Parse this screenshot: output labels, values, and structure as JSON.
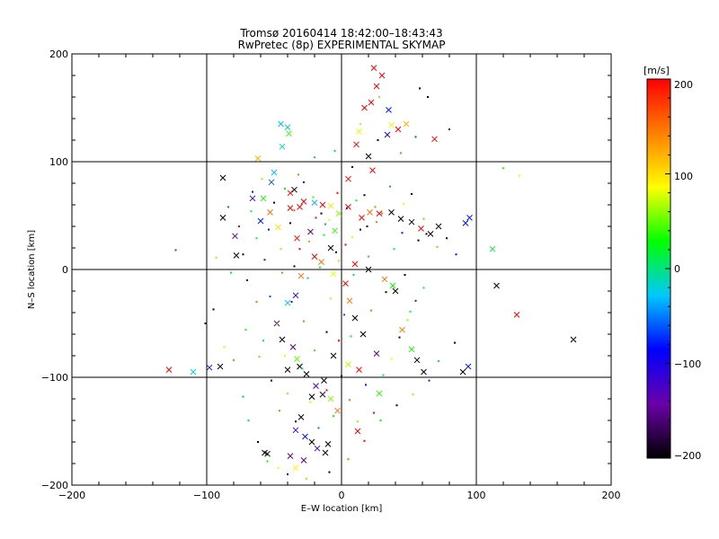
{
  "chart_data": {
    "type": "scatter",
    "title": "Tromsø 20160414 18:42:00–18:43:43",
    "subtitle": "RwPretec (8p) EXPERIMENTAL SKYMAP",
    "xlabel": "E–W location [km]",
    "ylabel": "N–S location [km]",
    "xlim": [
      -200,
      200
    ],
    "ylim": [
      -200,
      200
    ],
    "xticks": [
      "−200",
      "−100",
      "0",
      "100",
      "200"
    ],
    "yticks": [
      "−200",
      "−100",
      "0",
      "100",
      "200"
    ],
    "grid": true,
    "colorbar": {
      "label": "[m/s]",
      "min": -200,
      "max": 200,
      "ticks": [
        "200",
        "100",
        "0",
        "−100",
        "−200"
      ],
      "stops": [
        "#000000",
        "#6a00a8",
        "#0000ff",
        "#00c8ff",
        "#00ff00",
        "#ffff00",
        "#ff8000",
        "#ff0000"
      ]
    },
    "series": [
      {
        "marker": "x",
        "points": [
          [
            -128,
            -93,
            200
          ],
          [
            -110,
            -95,
            -20
          ],
          [
            -98,
            -91,
            -120
          ],
          [
            -90,
            -90,
            -200
          ],
          [
            -88,
            85,
            -200
          ],
          [
            -88,
            48,
            -200
          ],
          [
            -79,
            31,
            -150
          ],
          [
            -78,
            13,
            -200
          ],
          [
            -62,
            103,
            120
          ],
          [
            -58,
            66,
            30
          ],
          [
            -57,
            -170,
            -200
          ],
          [
            -55,
            -171,
            -200
          ],
          [
            -52,
            81,
            -60
          ],
          [
            -50,
            90,
            -30
          ],
          [
            -45,
            135,
            -30
          ],
          [
            -40,
            132,
            -20
          ],
          [
            -39,
            126,
            40
          ],
          [
            -44,
            114,
            -10
          ],
          [
            -35,
            74,
            -200
          ],
          [
            -38,
            71,
            200
          ],
          [
            -38,
            57,
            200
          ],
          [
            -31,
            58,
            200
          ],
          [
            -28,
            63,
            200
          ],
          [
            -20,
            62,
            -30
          ],
          [
            -14,
            60,
            200
          ],
          [
            -8,
            59,
            100
          ],
          [
            -2,
            52,
            60
          ],
          [
            5,
            58,
            200
          ],
          [
            15,
            48,
            200
          ],
          [
            21,
            53,
            150
          ],
          [
            28,
            52,
            200
          ],
          [
            37,
            53,
            -200
          ],
          [
            44,
            47,
            -200
          ],
          [
            52,
            44,
            -200
          ],
          [
            59,
            38,
            200
          ],
          [
            66,
            33,
            -200
          ],
          [
            72,
            40,
            -200
          ],
          [
            92,
            43,
            -80
          ],
          [
            95,
            48,
            -80
          ],
          [
            112,
            19,
            20
          ],
          [
            115,
            -15,
            -200
          ],
          [
            130,
            -42,
            200
          ],
          [
            172,
            -65,
            -200
          ],
          [
            94,
            -90,
            -80
          ],
          [
            90,
            -95,
            -200
          ],
          [
            61,
            -95,
            -200
          ],
          [
            56,
            -84,
            -200
          ],
          [
            52,
            -74,
            30
          ],
          [
            45,
            -56,
            150
          ],
          [
            40,
            -20,
            -200
          ],
          [
            38,
            -15,
            30
          ],
          [
            32,
            -9,
            150
          ],
          [
            20,
            0,
            -200
          ],
          [
            10,
            5,
            200
          ],
          [
            -8,
            20,
            -200
          ],
          [
            -20,
            12,
            200
          ],
          [
            -30,
            -6,
            150
          ],
          [
            -34,
            -24,
            -100
          ],
          [
            -40,
            -31,
            -30
          ],
          [
            -48,
            -50,
            -150
          ],
          [
            -44,
            -65,
            -200
          ],
          [
            -36,
            -72,
            -150
          ],
          [
            -31,
            -90,
            -200
          ],
          [
            -26,
            -97,
            -200
          ],
          [
            -19,
            -108,
            -120
          ],
          [
            -14,
            -116,
            -200
          ],
          [
            -8,
            -120,
            60
          ],
          [
            -3,
            -131,
            150
          ],
          [
            -30,
            -137,
            -200
          ],
          [
            -34,
            -149,
            -120
          ],
          [
            -27,
            -155,
            -80
          ],
          [
            -22,
            -160,
            -200
          ],
          [
            -18,
            -166,
            -120
          ],
          [
            -12,
            -170,
            -200
          ],
          [
            -38,
            -173,
            -150
          ],
          [
            -34,
            -184,
            90
          ],
          [
            -28,
            -177,
            -130
          ],
          [
            -10,
            -162,
            -200
          ],
          [
            -22,
            -118,
            -200
          ],
          [
            -13,
            -103,
            -200
          ],
          [
            -40,
            -93,
            -200
          ],
          [
            -33,
            -83,
            50
          ],
          [
            -6,
            -80,
            -200
          ],
          [
            5,
            -88,
            70
          ],
          [
            13,
            -93,
            200
          ],
          [
            12,
            -150,
            200
          ],
          [
            28,
            -115,
            40
          ],
          [
            26,
            -78,
            -150
          ],
          [
            16,
            -60,
            -200
          ],
          [
            10,
            -45,
            -200
          ],
          [
            6,
            -29,
            150
          ],
          [
            3,
            -13,
            200
          ],
          [
            -6,
            -4,
            80
          ],
          [
            -15,
            7,
            150
          ],
          [
            -5,
            36,
            40
          ],
          [
            -23,
            35,
            -150
          ],
          [
            -33,
            29,
            200
          ],
          [
            -47,
            39,
            100
          ],
          [
            -53,
            53,
            150
          ],
          [
            -60,
            45,
            -80
          ],
          [
            -66,
            66,
            -120
          ],
          [
            11,
            116,
            200
          ],
          [
            13,
            128,
            80
          ],
          [
            17,
            150,
            200
          ],
          [
            22,
            155,
            200
          ],
          [
            26,
            170,
            200
          ],
          [
            30,
            180,
            200
          ],
          [
            24,
            187,
            200
          ],
          [
            34,
            125,
            -100
          ],
          [
            37,
            134,
            90
          ],
          [
            42,
            130,
            200
          ],
          [
            48,
            135,
            120
          ],
          [
            69,
            121,
            200
          ],
          [
            35,
            148,
            -80
          ],
          [
            20,
            105,
            -200
          ],
          [
            23,
            92,
            200
          ],
          [
            5,
            84,
            200
          ]
        ]
      },
      {
        "marker": "dot",
        "points": [
          [
            -123,
            18,
            -60
          ],
          [
            -93,
            11,
            60
          ],
          [
            -82,
            -3,
            20
          ],
          [
            -73,
            14,
            -200
          ],
          [
            -63,
            29,
            20
          ],
          [
            -57,
            9,
            -150
          ],
          [
            -53,
            -25,
            -60
          ],
          [
            -48,
            -51,
            60
          ],
          [
            -44,
            -3,
            150
          ],
          [
            -38,
            43,
            -200
          ],
          [
            -31,
            19,
            200
          ],
          [
            -25,
            -8,
            -30
          ],
          [
            -19,
            48,
            200
          ],
          [
            -13,
            32,
            20
          ],
          [
            -8,
            -27,
            100
          ],
          [
            -2,
            8,
            60
          ],
          [
            3,
            23,
            200
          ],
          [
            9,
            -5,
            -30
          ],
          [
            14,
            37,
            -200
          ],
          [
            20,
            12,
            30
          ],
          [
            26,
            44,
            150
          ],
          [
            33,
            -21,
            -200
          ],
          [
            39,
            19,
            0
          ],
          [
            45,
            34,
            -120
          ],
          [
            51,
            -39,
            20
          ],
          [
            57,
            27,
            -200
          ],
          [
            63,
            33,
            -200
          ],
          [
            71,
            21,
            130
          ],
          [
            78,
            29,
            -200
          ],
          [
            85,
            14,
            -100
          ],
          [
            -71,
            -56,
            30
          ],
          [
            -61,
            -81,
            130
          ],
          [
            -52,
            -103,
            -200
          ],
          [
            -46,
            -131,
            150
          ],
          [
            -40,
            -115,
            60
          ],
          [
            -34,
            -141,
            -200
          ],
          [
            -29,
            -92,
            20
          ],
          [
            -23,
            -123,
            100
          ],
          [
            -17,
            -147,
            -50
          ],
          [
            -11,
            -112,
            200
          ],
          [
            -6,
            -136,
            30
          ],
          [
            0,
            -99,
            -200
          ],
          [
            6,
            -121,
            150
          ],
          [
            12,
            -141,
            60
          ],
          [
            18,
            -107,
            -80
          ],
          [
            24,
            -133,
            200
          ],
          [
            31,
            -98,
            20
          ],
          [
            37,
            -83,
            90
          ],
          [
            43,
            -63,
            -200
          ],
          [
            49,
            -47,
            60
          ],
          [
            55,
            -29,
            -150
          ],
          [
            61,
            -17,
            0
          ],
          [
            -66,
            72,
            -80
          ],
          [
            -59,
            84,
            60
          ],
          [
            -50,
            62,
            -200
          ],
          [
            -42,
            75,
            30
          ],
          [
            -35,
            55,
            150
          ],
          [
            -28,
            81,
            -100
          ],
          [
            -21,
            67,
            40
          ],
          [
            -15,
            52,
            -200
          ],
          [
            -9,
            46,
            80
          ],
          [
            -3,
            71,
            200
          ],
          [
            4,
            57,
            -150
          ],
          [
            11,
            64,
            20
          ],
          [
            17,
            69,
            -200
          ],
          [
            25,
            58,
            150
          ],
          [
            36,
            77,
            -40
          ],
          [
            46,
            61,
            80
          ],
          [
            52,
            70,
            -200
          ],
          [
            61,
            47,
            40
          ],
          [
            -5,
            110,
            20
          ],
          [
            8,
            95,
            -200
          ],
          [
            14,
            135,
            100
          ],
          [
            27,
            120,
            -200
          ],
          [
            44,
            108,
            150
          ],
          [
            55,
            123,
            -60
          ],
          [
            64,
            160,
            -200
          ],
          [
            80,
            130,
            -100
          ],
          [
            132,
            87,
            80
          ],
          [
            120,
            94,
            40
          ],
          [
            58,
            168,
            -200
          ],
          [
            28,
            160,
            60
          ],
          [
            -20,
            104,
            -30
          ],
          [
            -32,
            88,
            150
          ],
          [
            -76,
            40,
            200
          ],
          [
            -84,
            58,
            -50
          ],
          [
            -95,
            -37,
            -200
          ],
          [
            -101,
            -50,
            -200
          ],
          [
            -87,
            -72,
            70
          ],
          [
            -80,
            -84,
            150
          ],
          [
            -73,
            -118,
            -40
          ],
          [
            -69,
            -140,
            20
          ],
          [
            -62,
            -160,
            -200
          ],
          [
            -55,
            -178,
            30
          ],
          [
            -47,
            -184,
            90
          ],
          [
            -40,
            -190,
            -200
          ],
          [
            -26,
            -194,
            60
          ],
          [
            -9,
            -188,
            -200
          ],
          [
            5,
            -176,
            150
          ],
          [
            17,
            -159,
            200
          ],
          [
            29,
            -140,
            30
          ],
          [
            41,
            -126,
            -200
          ],
          [
            53,
            -116,
            60
          ],
          [
            65,
            -103,
            -150
          ],
          [
            72,
            -85,
            20
          ],
          [
            84,
            -68,
            -200
          ],
          [
            47,
            -5,
            -200
          ],
          [
            22,
            -38,
            150
          ],
          [
            -11,
            -58,
            -200
          ],
          [
            -20,
            -75,
            40
          ],
          [
            -2,
            -66,
            200
          ],
          [
            2,
            -42,
            -60
          ],
          [
            7,
            -62,
            20
          ],
          [
            -28,
            -48,
            150
          ],
          [
            -37,
            -30,
            -150
          ],
          [
            -16,
            2,
            20
          ],
          [
            -4,
            16,
            -200
          ],
          [
            8,
            30,
            80
          ],
          [
            19,
            40,
            -200
          ],
          [
            30,
            52,
            150
          ],
          [
            -12,
            42,
            -40
          ],
          [
            -24,
            26,
            130
          ],
          [
            -35,
            3,
            -200
          ],
          [
            -45,
            19,
            60
          ],
          [
            -54,
            37,
            -80
          ],
          [
            -67,
            54,
            20
          ],
          [
            -70,
            -10,
            -200
          ],
          [
            -63,
            -30,
            150
          ],
          [
            -58,
            -66,
            -20
          ],
          [
            -42,
            -80,
            90
          ]
        ]
      }
    ]
  }
}
